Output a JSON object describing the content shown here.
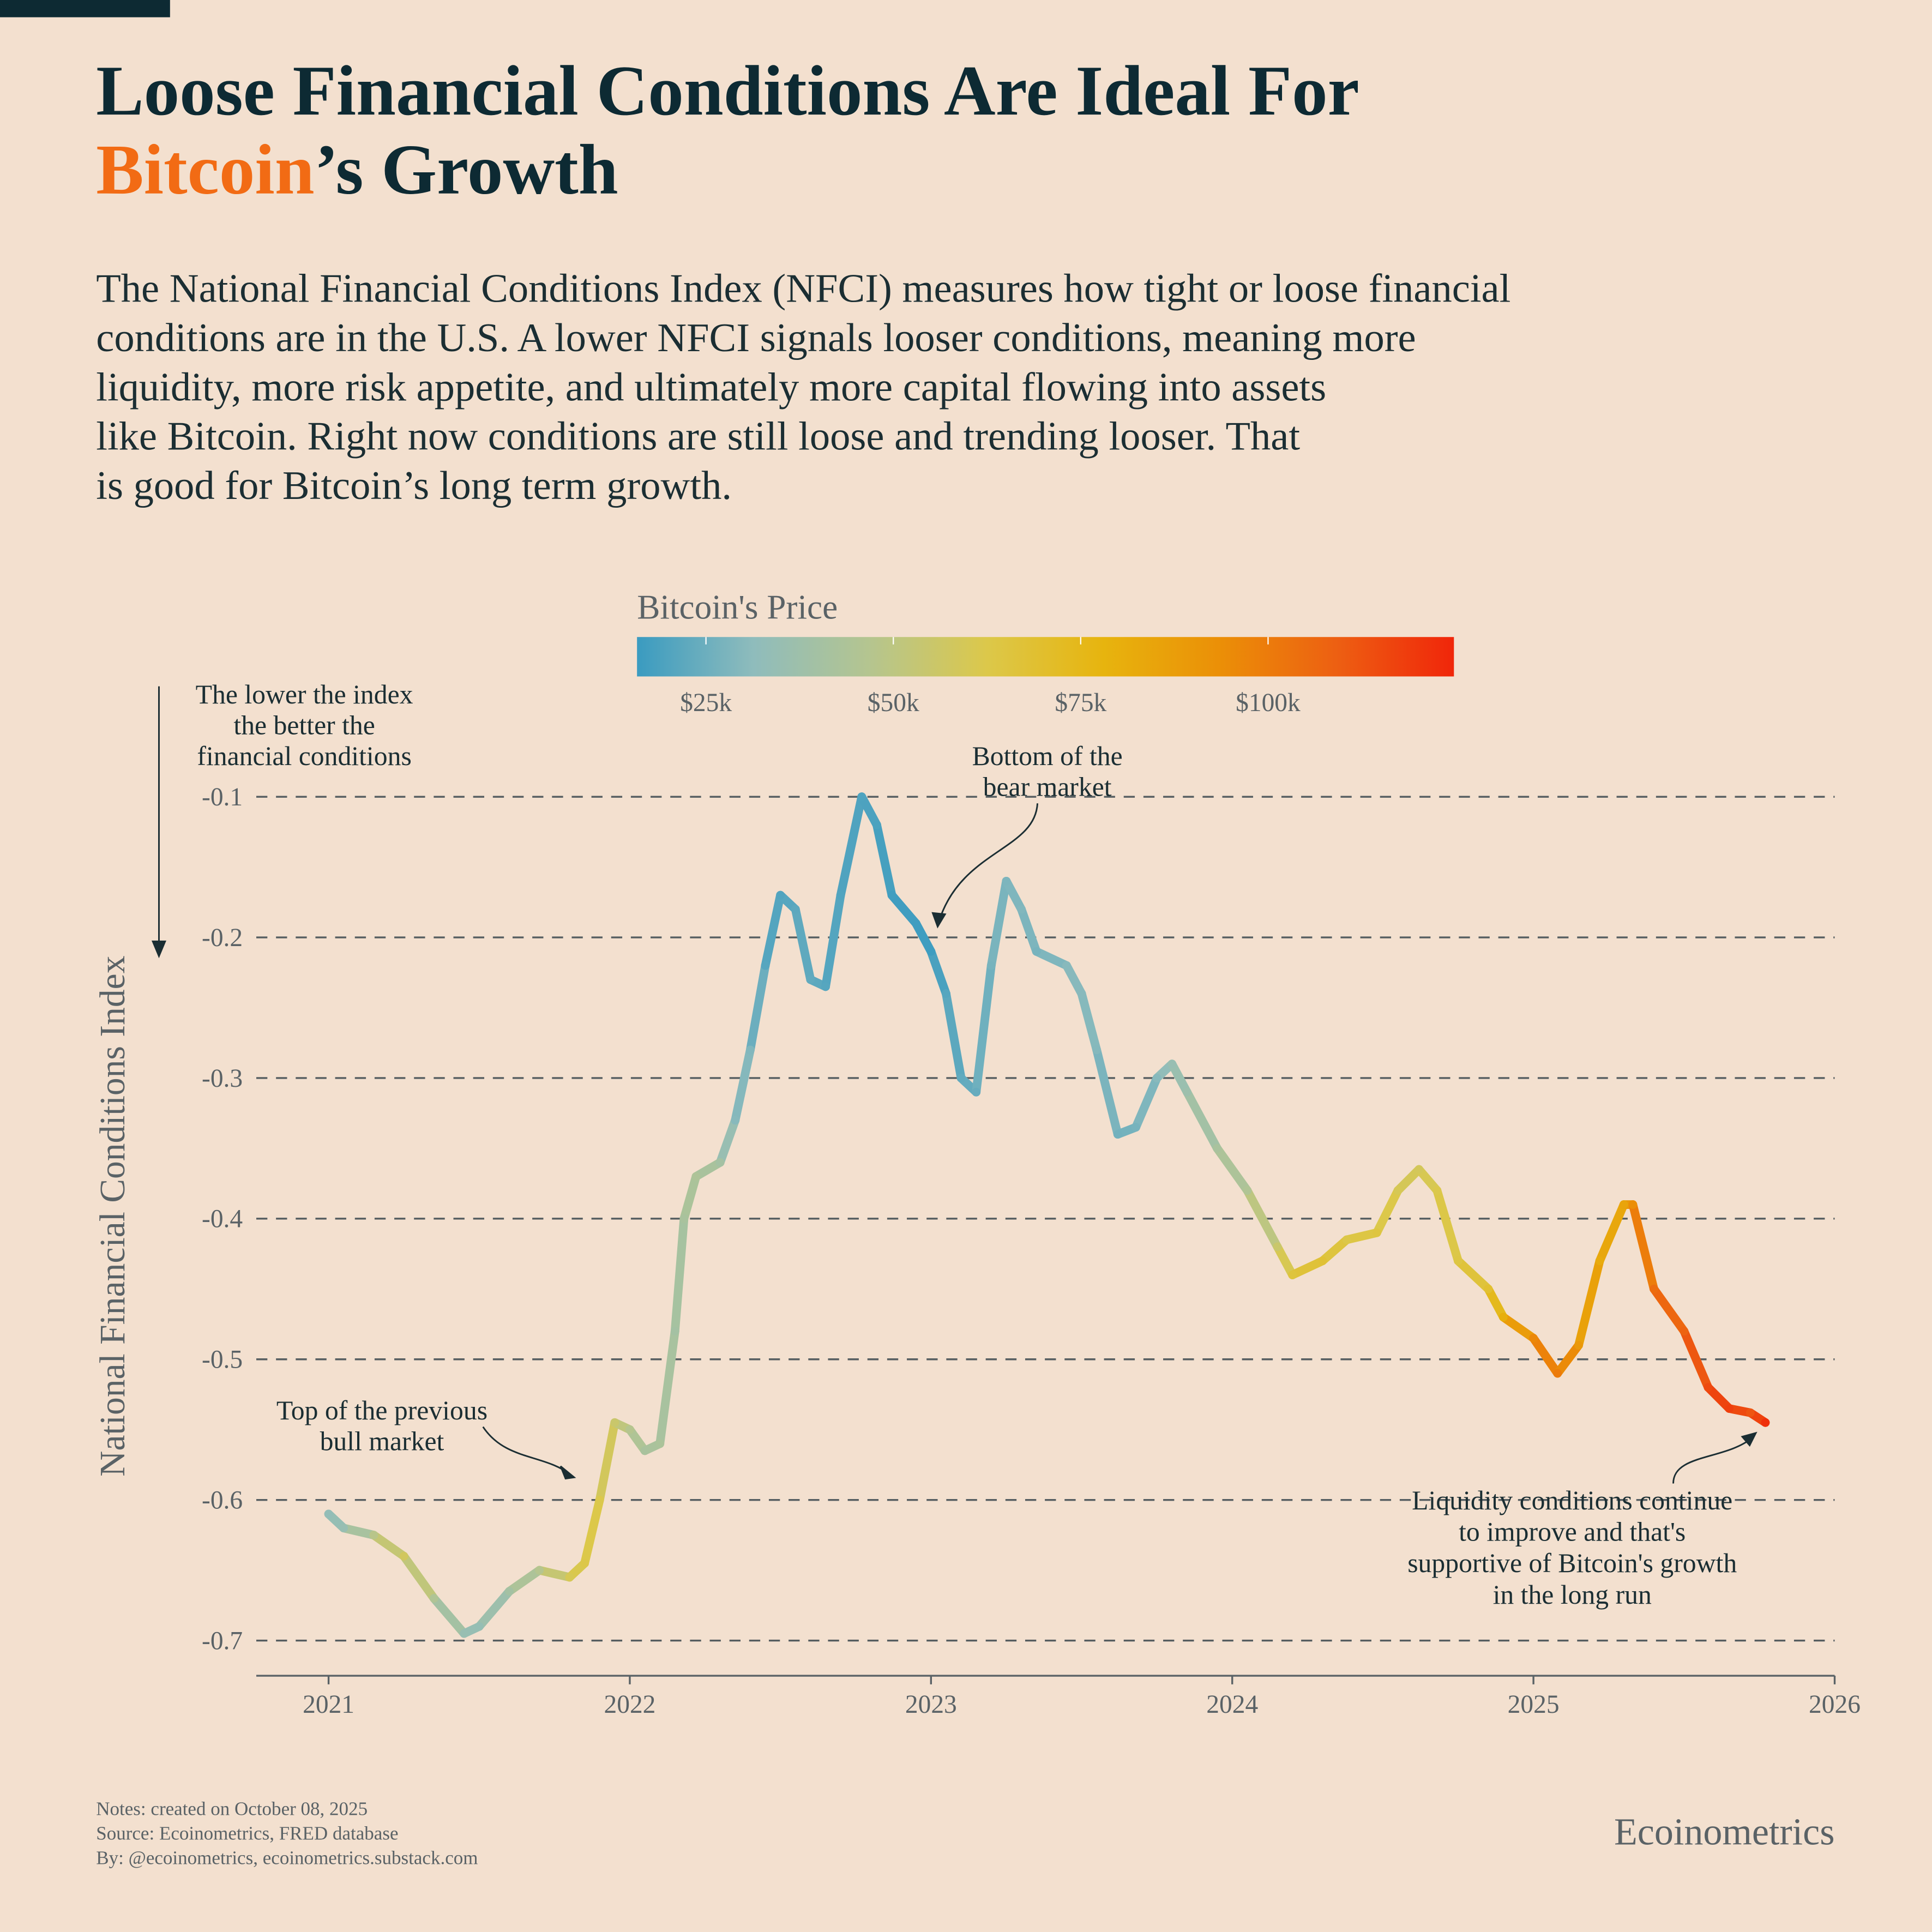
{
  "chart_data": {
    "type": "line",
    "title": {
      "line1": "Loose Financial Conditions Are Ideal For",
      "highlight": "Bitcoin",
      "rest": "’s Growth"
    },
    "subtitle": [
      "The National Financial Conditions Index (NFCI) measures how tight or loose financial",
      "conditions are in the U.S. A lower NFCI signals looser conditions, meaning more",
      "liquidity, more risk appetite, and ultimately more capital flowing into assets",
      "like Bitcoin. Right now conditions are still loose and trending looser. That",
      "is good for Bitcoin’s long term growth."
    ],
    "ylabel": "National Financial Conditions Index",
    "colorbar_title": "Bitcoin's Price",
    "colorscale": [
      "#3a9bc0",
      "#8fbcbc",
      "#b5c58f",
      "#dcc84a",
      "#e7b40e",
      "#eb8f07",
      "#ed5f12",
      "#f0260a"
    ],
    "clim": [
      15800,
      124800
    ],
    "colorbar_ticks": [
      {
        "value": 25000,
        "label": "$25k"
      },
      {
        "value": 50000,
        "label": "$50k"
      },
      {
        "value": 75000,
        "label": "$75k"
      },
      {
        "value": 100000,
        "label": "$100k"
      }
    ],
    "xlim": [
      2020.76,
      2026
    ],
    "xticks": [
      2021,
      2022,
      2023,
      2024,
      2025,
      2026
    ],
    "ylim": [
      -0.725,
      -0.06
    ],
    "yticks": [
      -0.1,
      -0.2,
      -0.3,
      -0.4,
      -0.5,
      -0.6,
      -0.7
    ],
    "grid": true,
    "x": [
      2021.0,
      2021.05,
      2021.15,
      2021.25,
      2021.35,
      2021.45,
      2021.5,
      2021.6,
      2021.7,
      2021.8,
      2021.85,
      2021.9,
      2021.95,
      2022.0,
      2022.05,
      2022.1,
      2022.15,
      2022.18,
      2022.22,
      2022.3,
      2022.35,
      2022.4,
      2022.45,
      2022.5,
      2022.55,
      2022.6,
      2022.65,
      2022.7,
      2022.77,
      2022.82,
      2022.87,
      2022.95,
      2023.0,
      2023.05,
      2023.1,
      2023.15,
      2023.2,
      2023.25,
      2023.3,
      2023.35,
      2023.45,
      2023.5,
      2023.55,
      2023.62,
      2023.68,
      2023.75,
      2023.8,
      2023.85,
      2023.95,
      2024.05,
      2024.15,
      2024.2,
      2024.3,
      2024.38,
      2024.48,
      2024.55,
      2024.62,
      2024.68,
      2024.75,
      2024.85,
      2024.9,
      2025.0,
      2025.08,
      2025.15,
      2025.22,
      2025.3,
      2025.33,
      2025.4,
      2025.5,
      2025.58,
      2025.65,
      2025.72,
      2025.77
    ],
    "values": [
      -0.61,
      -0.62,
      -0.625,
      -0.64,
      -0.67,
      -0.695,
      -0.69,
      -0.665,
      -0.65,
      -0.655,
      -0.645,
      -0.6,
      -0.545,
      -0.55,
      -0.565,
      -0.56,
      -0.48,
      -0.4,
      -0.37,
      -0.36,
      -0.33,
      -0.28,
      -0.22,
      -0.17,
      -0.18,
      -0.23,
      -0.235,
      -0.17,
      -0.1,
      -0.12,
      -0.17,
      -0.19,
      -0.21,
      -0.24,
      -0.3,
      -0.31,
      -0.22,
      -0.16,
      -0.18,
      -0.21,
      -0.22,
      -0.24,
      -0.28,
      -0.34,
      -0.335,
      -0.3,
      -0.29,
      -0.31,
      -0.35,
      -0.38,
      -0.42,
      -0.44,
      -0.43,
      -0.415,
      -0.41,
      -0.38,
      -0.365,
      -0.38,
      -0.43,
      -0.45,
      -0.47,
      -0.485,
      -0.51,
      -0.49,
      -0.43,
      -0.39,
      -0.39,
      -0.45,
      -0.48,
      -0.52,
      -0.535,
      -0.538,
      -0.545
    ],
    "prices": [
      33000,
      35000,
      48000,
      58000,
      45000,
      35000,
      34000,
      40000,
      47000,
      60000,
      63000,
      62000,
      55000,
      47000,
      42000,
      43000,
      40000,
      42000,
      44000,
      40000,
      30000,
      29000,
      21000,
      20000,
      22000,
      23000,
      21000,
      20000,
      19500,
      19000,
      17000,
      16800,
      16600,
      21000,
      23000,
      24000,
      27000,
      28000,
      29000,
      27000,
      30000,
      30000,
      29500,
      26000,
      27000,
      30000,
      35000,
      37000,
      42000,
      45000,
      55000,
      66000,
      68000,
      63000,
      65000,
      60000,
      59000,
      62000,
      64000,
      69000,
      80000,
      96000,
      100000,
      90000,
      82000,
      85000,
      94000,
      105000,
      108000,
      115000,
      118000,
      112000,
      122000
    ],
    "annotations": [
      {
        "text": [
          "The lower the index",
          "the better the",
          "financial conditions"
        ]
      },
      {
        "text": [
          "Bottom of the",
          "bear market"
        ]
      },
      {
        "text": [
          "Top of the previous",
          "bull market"
        ]
      },
      {
        "text": [
          "Liquidity conditions continue",
          "to improve and that's",
          "supportive of Bitcoin's growth",
          "in the long run"
        ]
      }
    ],
    "notes": [
      "Notes: created on October 08, 2025",
      "Source: Ecoinometrics, FRED database",
      "By: @ecoinometrics, ecoinometrics.substack.com"
    ],
    "brand": "Ecoinometrics"
  }
}
